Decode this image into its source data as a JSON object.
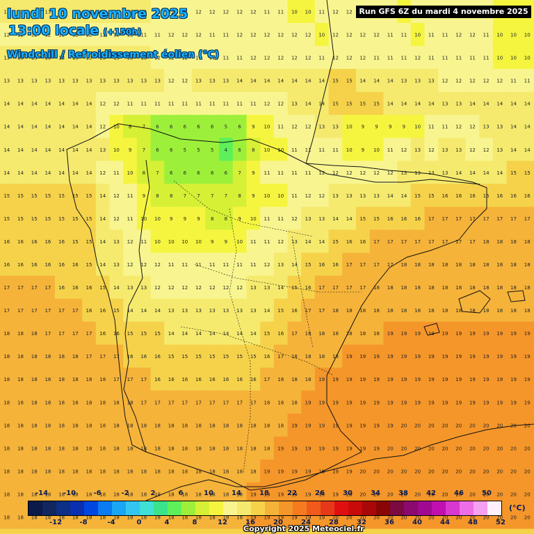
{
  "header": {
    "date_line": "lundi 10 novembre 2025",
    "time_line": "13:00 locale",
    "lead": "(+150h)",
    "param_line": "Windchill / Refroidissement éolien (°C)",
    "run": "Run GFS 6Z du mardi 4 novembre 2025"
  },
  "legend": {
    "unit": "(°C)",
    "labels_top": [
      "-14",
      "-10",
      "-6",
      "-2",
      "2",
      "6",
      "10",
      "14",
      "18",
      "22",
      "26",
      "30",
      "34",
      "38",
      "42",
      "46",
      "50"
    ],
    "labels_bottom": [
      "-12",
      "-8",
      "-4",
      "0",
      "4",
      "8",
      "12",
      "16",
      "20",
      "24",
      "28",
      "32",
      "36",
      "40",
      "44",
      "48",
      "52"
    ],
    "colors": [
      "#0b1a4a",
      "#12265f",
      "#0d2f85",
      "#0a2fb0",
      "#0046e0",
      "#0a7bf0",
      "#1aa6f5",
      "#33c6f0",
      "#3fe0d6",
      "#39e38a",
      "#5ef05a",
      "#9cf03a",
      "#d6f035",
      "#f5f540",
      "#f8f590",
      "#f5ea6e",
      "#f5d24a",
      "#f5b33a",
      "#f5962a",
      "#f57a20",
      "#f05a1a",
      "#e8381a",
      "#e01010",
      "#c80a0a",
      "#a80808",
      "#8a0606",
      "#7a0a40",
      "#8a0a70",
      "#a00a90",
      "#c010b0",
      "#d838d0",
      "#ee6ee8",
      "#f5a0f0",
      "#fff0ff"
    ]
  },
  "footer": {
    "copyright": "Copyright 2025 Meteociel.fr"
  },
  "map_data": {
    "rows": [
      "13 13 13 13 13 13 13 13 13 13 13 12 12 11 12 12 12 12 12 11 11 10 10 11 12 12 12 11 11 10 11 11 12 11 11 11 10 10 10",
      "12 12 12 12 12 12 12 12 12 12 11 11 12 12 12 11 11 12 12 12 12 12 12 10 12 12 12 12 11 11 10 11 11 12 12 11 10 10 10",
      "13 13 13 13 13 13 13 13 13 13 13 12 12 12 11 11 11 11 12 12 12 12 12 11 12 12 12 11 11 11 12 11 11 11 11 11 10 10 10",
      "13 13 13 13 13 13 13 13 13 13 13 13 12 12 13 13 13 14 14 14 14 14 14 14 15 15 14 14 14 13 13 13 12 12 12 12 12 11 11",
      "14 14 14 14 14 14 14 12 12 11 11 11 11 11 11 11 11 11 11 12 12 13 14 14 15 15 15 15 14 14 14 14 13 13 14 14 14 14 14",
      "14 14 14 14 14 14 14 12 10 8 7 6 6 6 6 6 5 6 9 10 11 12 12 13 13 10 9 9 9 9 10 11 11 12 12 13 13 14 14",
      "14 14 14 14 14 14 14 13 10 9 7 6 6 5 5 5 4 6 8 10 10 11 11 11 11 10 9 10 11 12 13 12 13 13 12 12 13 14 14",
      "14 14 14 14 14 14 14 12 11 10 8 7 6 6 6 6 6 7 9 11 11 11 11 12 12 12 12 12 12 13 13 13 13 14 14 14 14 15 15",
      "15 15 15 15 15 15 15 14 12 11 9 8 8 7 7 7 7 8 9 10 10 11 12 12 13 13 13 13 14 14 15 15 16 16 16 16 16 16 16",
      "15 15 15 15 15 15 15 14 12 11 10 10 9 9 9 8 8 9 10 11 11 12 13 13 14 14 15 15 16 16 16 17 17 17 17 17 17 17 17",
      "16 16 16 16 16 15 15 14 13 12 11 10 10 10 10 9 9 10 11 11 12 13 14 14 15 16 16 17 17 17 17 17 17 17 17 18 18 18 18",
      "16 16 16 16 16 16 15 14 13 12 12 12 11 11 11 11 11 11 11 12 13 14 15 16 16 17 17 17 17 18 18 18 18 18 18 18 18 18 18",
      "17 17 17 17 16 16 16 15 14 13 13 12 12 12 12 12 12 12 13 13 14 15 16 17 17 17 17 18 18 18 18 18 18 18 18 18 18 18 18",
      "17 17 17 17 17 17 16 16 15 14 14 14 13 13 13 13 13 13 13 14 15 16 17 17 18 18 18 18 18 18 18 18 18 18 18 18 18 18 18",
      "18 18 18 17 17 17 17 16 16 15 15 15 14 14 14 14 14 14 14 15 16 17 18 18 18 18 18 18 19 19 19 19 19 19 19 19 19 19 19",
      "18 18 18 18 18 18 17 17 17 16 16 16 15 15 15 15 15 15 15 16 17 18 18 18 18 19 19 19 19 19 19 19 19 19 19 19 19 19 19",
      "18 18 18 18 18 18 18 18 17 17 17 16 16 16 16 16 16 16 16 17 18 18 18 19 19 19 19 19 19 19 19 19 19 19 19 19 19 19 19",
      "18 18 18 18 18 18 18 18 18 18 17 17 17 17 17 17 17 17 17 18 18 18 19 19 19 19 19 19 19 19 19 19 19 19 19 19 19 19 19",
      "18 18 18 18 18 18 18 18 18 18 18 18 18 18 18 18 18 18 18 18 18 19 19 19 19 19 19 19 19 20 20 20 20 20 20 20 20 20 20",
      "18 18 18 18 18 18 18 18 18 18 18 18 18 18 18 18 18 18 18 18 19 19 19 19 19 19 19 19 20 20 20 20 20 20 20 20 20 20 20",
      "18 18 18 18 18 18 18 18 18 18 18 18 18 18 18 18 18 18 18 19 19 19 19 19 19 19 20 20 20 20 20 20 20 20 20 20 20 20 20",
      "18 18 18 18 18 18 18 18 18 18 18 18 18 18 18 18 18 18 19 19 19 19 19 19 19 20 20 20 20 20 20 20 20 20 20 20 20 20 20",
      "18 18 18 18 18 18 18 18 18 18 18 18 18 18 18 18 18 18 19 19 19 19 19 19 20 20 20 20 20 20 20 20 20 20 20 20 20 20 20"
    ]
  }
}
